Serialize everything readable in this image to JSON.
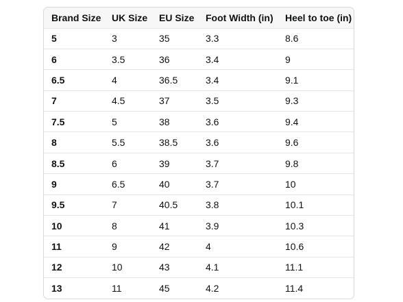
{
  "table": {
    "headers": [
      "Brand Size",
      "UK Size",
      "EU Size",
      "Foot Width (in)",
      "Heel to toe (in)"
    ],
    "rows": [
      [
        "5",
        "3",
        "35",
        "3.3",
        "8.6"
      ],
      [
        "6",
        "3.5",
        "36",
        "3.4",
        "9"
      ],
      [
        "6.5",
        "4",
        "36.5",
        "3.4",
        "9.1"
      ],
      [
        "7",
        "4.5",
        "37",
        "3.5",
        "9.3"
      ],
      [
        "7.5",
        "5",
        "38",
        "3.6",
        "9.4"
      ],
      [
        "8",
        "5.5",
        "38.5",
        "3.6",
        "9.6"
      ],
      [
        "8.5",
        "6",
        "39",
        "3.7",
        "9.8"
      ],
      [
        "9",
        "6.5",
        "40",
        "3.7",
        "10"
      ],
      [
        "9.5",
        "7",
        "40.5",
        "3.8",
        "10.1"
      ],
      [
        "10",
        "8",
        "41",
        "3.9",
        "10.3"
      ],
      [
        "11",
        "9",
        "42",
        "4",
        "10.6"
      ],
      [
        "12",
        "10",
        "43",
        "4.1",
        "11.1"
      ],
      [
        "13",
        "11",
        "45",
        "4.2",
        "11.4"
      ]
    ]
  }
}
